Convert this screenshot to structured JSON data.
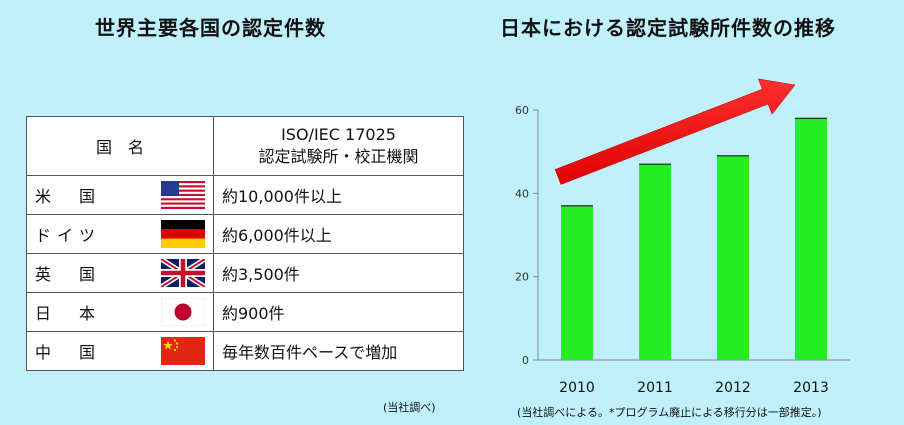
{
  "left": {
    "title": "世界主要各国の認定件数",
    "header_country": "国　名",
    "header_count_line1": "ISO/IEC 17025",
    "header_count_line2": "認定試験所・校正機関",
    "rows": [
      {
        "country": "米　国",
        "flag": "us-flag",
        "count": "約10,000件以上"
      },
      {
        "country": "ドイツ",
        "flag": "germany-flag",
        "count": "約6,000件以上"
      },
      {
        "country": "英　国",
        "flag": "uk-flag",
        "count": "約3,500件"
      },
      {
        "country": "日　本",
        "flag": "japan-flag",
        "count": "約900件"
      },
      {
        "country": "中　国",
        "flag": "china-flag",
        "count": "毎年数百件ペースで増加"
      }
    ],
    "note": "(当社調べ)"
  },
  "right": {
    "title": "日本における認定試験所件数の推移",
    "note": "(当社調べによる。*プログラム廃止による移行分は一部推定。)"
  },
  "colors": {
    "background": "#bff0fb",
    "bar": "#22ee22",
    "arrow": "#ff1a1a"
  },
  "chart_data": {
    "type": "bar",
    "categories": [
      "2010",
      "2011",
      "2012",
      "2013"
    ],
    "values": [
      37,
      47,
      49,
      58
    ],
    "ylim": [
      0,
      60
    ],
    "yticks": [
      0,
      20,
      40,
      60
    ],
    "grid": false,
    "annotations": [
      "upward trend arrow"
    ]
  }
}
